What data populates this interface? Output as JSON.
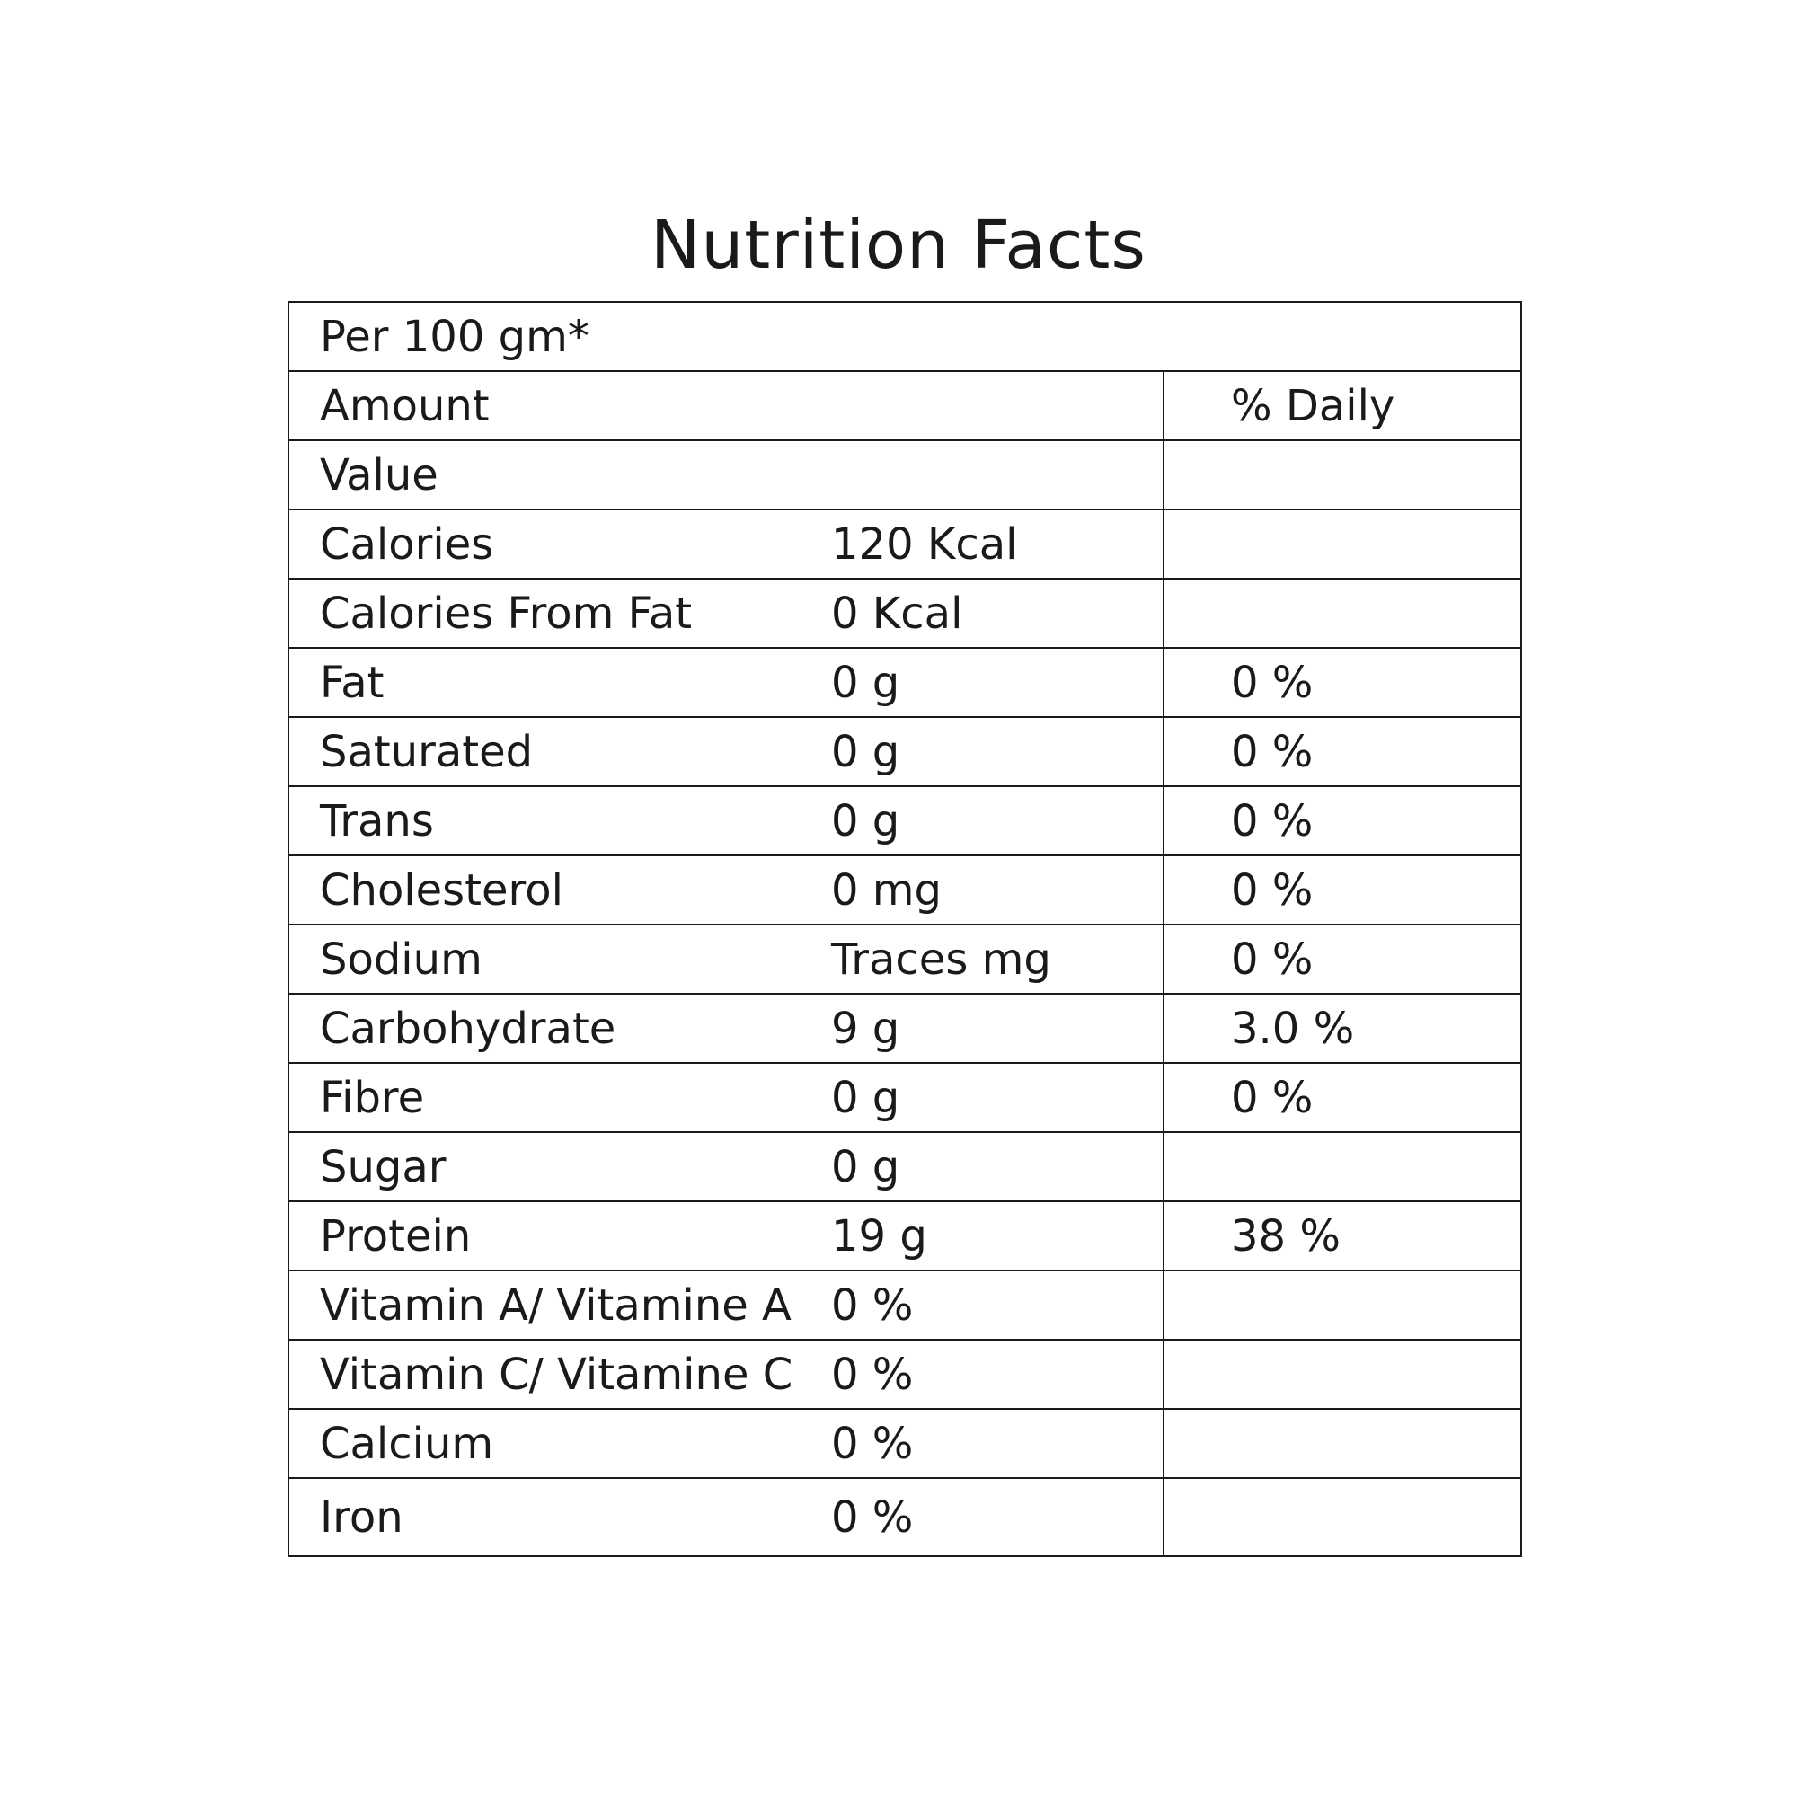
{
  "title": "Nutrition Facts",
  "serving": "Per 100 gm*",
  "headers": {
    "amount": "Amount",
    "daily": "% Daily",
    "value": "Value"
  },
  "rows": [
    {
      "name": "Calories",
      "amount": "120 Kcal",
      "daily": ""
    },
    {
      "name": "Calories From Fat",
      "amount": "0 Kcal",
      "daily": ""
    },
    {
      "name": "Fat",
      "amount": "0 g",
      "daily": "0 %"
    },
    {
      "name": "Saturated",
      "amount": "0 g",
      "daily": "0 %"
    },
    {
      "name": "Trans",
      "amount": "0 g",
      "daily": "0 %"
    },
    {
      "name": "Cholesterol",
      "amount": "0 mg",
      "daily": "0 %"
    },
    {
      "name": "Sodium",
      "amount": "Traces mg",
      "daily": "0 %"
    },
    {
      "name": "Carbohydrate",
      "amount": "9 g",
      "daily": "3.0 %"
    },
    {
      "name": "Fibre",
      "amount": "0 g",
      "daily": "0 %"
    },
    {
      "name": "Sugar",
      "amount": "0 g",
      "daily": ""
    },
    {
      "name": "Protein",
      "amount": "19 g",
      "daily": "38 %"
    },
    {
      "name": "Vitamin A/ Vitamine A",
      "amount": "0 %",
      "daily": ""
    },
    {
      "name": "Vitamin C/ Vitamine C",
      "amount": "0 %",
      "daily": ""
    },
    {
      "name": "Calcium",
      "amount": "0 %",
      "daily": ""
    },
    {
      "name": "Iron",
      "amount": "0 %",
      "daily": ""
    }
  ]
}
